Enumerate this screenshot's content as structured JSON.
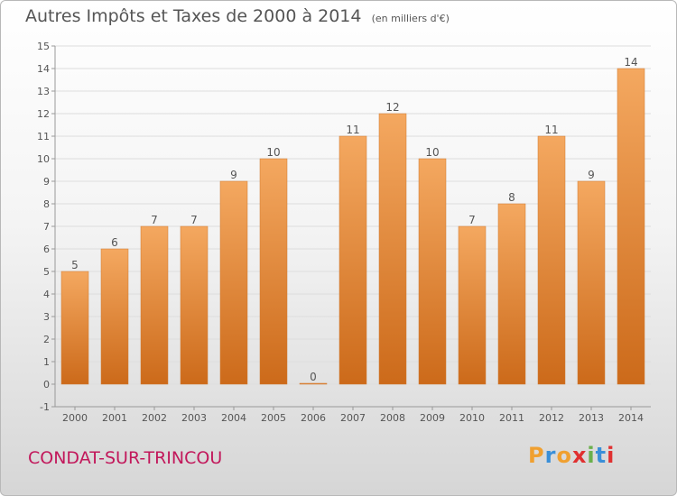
{
  "title": "Autres Impôts et Taxes de 2000 à 2014",
  "unit": "(en milliers d'€)",
  "commune": "CONDAT-SUR-TRINCOU",
  "brand": {
    "letters": [
      "P",
      "r",
      "o",
      "x",
      "i",
      "t",
      "i"
    ],
    "colors": [
      "#f0a030",
      "#3a8fd8",
      "#f0a030",
      "#e03030",
      "#6ab04c",
      "#3a8fd8",
      "#e03030"
    ]
  },
  "colors": {
    "bar_top": "#f4a860",
    "bar_bottom": "#cc6a1a",
    "bar_edge": "#d07a30",
    "axis": "#999999",
    "grid": "#dddddd",
    "text": "#555555"
  },
  "chart_data": {
    "type": "bar",
    "categories": [
      "2000",
      "2001",
      "2002",
      "2003",
      "2004",
      "2005",
      "2006",
      "2007",
      "2008",
      "2009",
      "2010",
      "2011",
      "2012",
      "2013",
      "2014"
    ],
    "values": [
      5,
      6,
      7,
      7,
      9,
      10,
      0,
      11,
      12,
      10,
      7,
      8,
      11,
      9,
      14
    ],
    "ylim": [
      -1,
      15
    ],
    "yticks": [
      -1,
      0,
      1,
      2,
      3,
      4,
      5,
      6,
      7,
      8,
      9,
      10,
      11,
      12,
      13,
      14,
      15
    ],
    "xlabel": "",
    "ylabel": "",
    "grid": true
  }
}
